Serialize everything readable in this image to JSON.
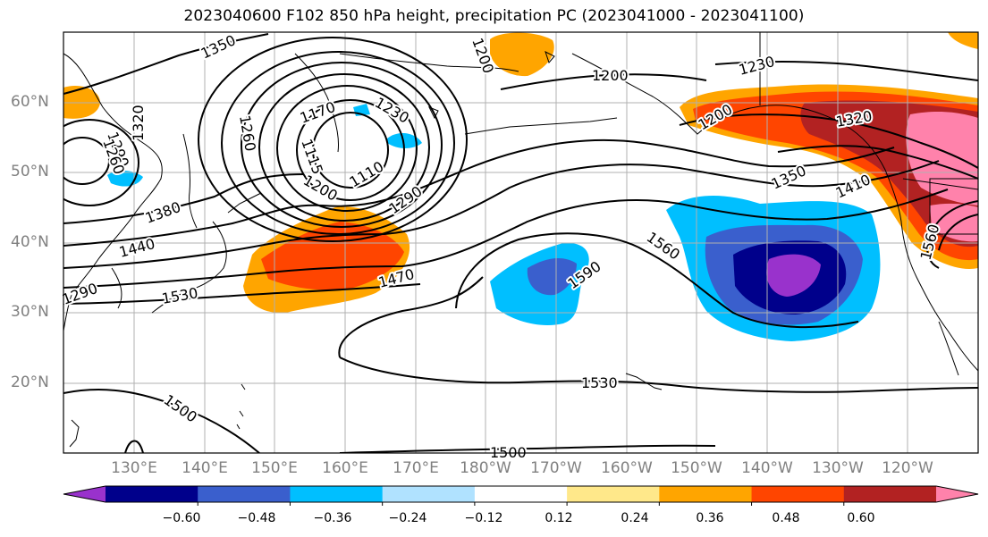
{
  "title": "2023040600 F102 850 hPa height, precipitation PC (2023041000 - 2023041100)",
  "lat_labels": [
    "60°N",
    "50°N",
    "40°N",
    "30°N",
    "20°N"
  ],
  "lon_labels": [
    "130°E",
    "140°E",
    "150°E",
    "160°E",
    "170°E",
    "180°W",
    "170°W",
    "160°W",
    "150°W",
    "140°W",
    "130°W",
    "120°W"
  ],
  "colorbar": {
    "ticks": [
      "−0.60",
      "−0.48",
      "−0.36",
      "−0.24",
      "−0.12",
      "0.12",
      "0.24",
      "0.36",
      "0.48",
      "0.60"
    ],
    "colors": [
      "#9932cc",
      "#00008b",
      "#3a5fcd",
      "#00bfff",
      "#b0e2ff",
      "#ffffff",
      "#ffe88a",
      "#ffa500",
      "#ff4500",
      "#b22222",
      "#ff82ab"
    ]
  },
  "contour_labels": [
    "1350",
    "1260",
    "1230",
    "1170",
    "1115",
    "1110",
    "1200",
    "1290",
    "1290",
    "1260",
    "1320",
    "1380",
    "1440",
    "1530",
    "1470",
    "1590",
    "1560",
    "1530",
    "1500",
    "1500",
    "1260",
    "1230",
    "1200",
    "1320",
    "1350",
    "1410",
    "1560",
    "1290",
    "1200",
    "1200"
  ],
  "map_colors": {
    "coast": "#000000",
    "grid": "#b0b0b0",
    "contour": "#000000"
  }
}
